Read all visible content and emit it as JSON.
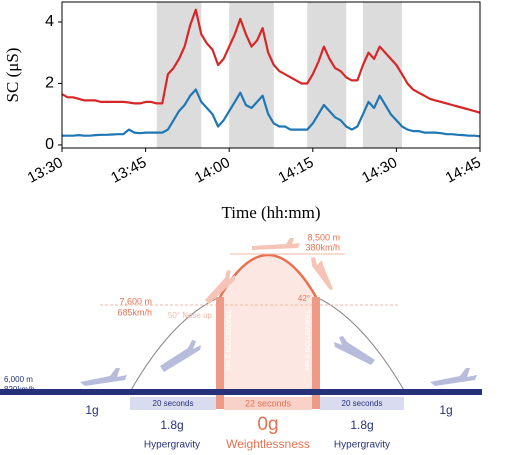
{
  "chart_data": {
    "type": "line",
    "ylabel": "SC (μS)",
    "xlabel": "Time (hh:mm)",
    "x": [
      "13:30",
      "13:31",
      "13:32",
      "13:33",
      "13:34",
      "13:35",
      "13:36",
      "13:37",
      "13:38",
      "13:39",
      "13:40",
      "13:41",
      "13:42",
      "13:43",
      "13:44",
      "13:45",
      "13:46",
      "13:47",
      "13:48",
      "13:49",
      "13:50",
      "13:51",
      "13:52",
      "13:53",
      "13:54",
      "13:55",
      "13:56",
      "13:57",
      "13:58",
      "13:59",
      "14:00",
      "14:01",
      "14:02",
      "14:03",
      "14:04",
      "14:05",
      "14:06",
      "14:07",
      "14:08",
      "14:09",
      "14:10",
      "14:11",
      "14:12",
      "14:13",
      "14:14",
      "14:15",
      "14:16",
      "14:17",
      "14:18",
      "14:19",
      "14:20",
      "14:21",
      "14:22",
      "14:23",
      "14:24",
      "14:25",
      "14:26",
      "14:27",
      "14:28",
      "14:29",
      "14:30",
      "14:31",
      "14:32",
      "14:33",
      "14:34",
      "14:35",
      "14:36",
      "14:37",
      "14:38",
      "14:39",
      "14:40",
      "14:41",
      "14:42",
      "14:43",
      "14:44",
      "14:45"
    ],
    "series": [
      {
        "color": "#d62728",
        "values": [
          1.65,
          1.55,
          1.55,
          1.5,
          1.45,
          1.45,
          1.45,
          1.4,
          1.4,
          1.4,
          1.4,
          1.4,
          1.38,
          1.35,
          1.35,
          1.4,
          1.4,
          1.35,
          1.35,
          2.3,
          2.5,
          2.8,
          3.2,
          3.9,
          4.4,
          3.6,
          3.3,
          3.1,
          2.6,
          2.8,
          3.2,
          3.6,
          4.1,
          3.6,
          3.2,
          3.4,
          3.8,
          3.0,
          2.6,
          2.4,
          2.3,
          2.2,
          2.1,
          2.0,
          2.0,
          2.3,
          2.7,
          3.2,
          2.8,
          2.5,
          2.4,
          2.2,
          2.1,
          2.1,
          2.6,
          3.0,
          2.8,
          3.2,
          3.0,
          2.8,
          2.6,
          2.3,
          2.0,
          1.8,
          1.7,
          1.6,
          1.5,
          1.45,
          1.4,
          1.35,
          1.3,
          1.25,
          1.2,
          1.15,
          1.1,
          1.05
        ]
      },
      {
        "color": "#1f77b4",
        "values": [
          0.3,
          0.3,
          0.3,
          0.32,
          0.3,
          0.3,
          0.32,
          0.33,
          0.33,
          0.34,
          0.35,
          0.35,
          0.5,
          0.4,
          0.38,
          0.4,
          0.4,
          0.4,
          0.4,
          0.5,
          0.8,
          1.1,
          1.3,
          1.6,
          1.8,
          1.4,
          1.2,
          1.0,
          0.6,
          0.8,
          1.1,
          1.4,
          1.7,
          1.3,
          1.2,
          1.4,
          1.6,
          1.0,
          0.7,
          0.6,
          0.6,
          0.5,
          0.5,
          0.5,
          0.5,
          0.7,
          1.0,
          1.3,
          1.1,
          0.9,
          0.8,
          0.6,
          0.5,
          0.6,
          1.0,
          1.4,
          1.2,
          1.6,
          1.3,
          1.0,
          0.8,
          0.6,
          0.5,
          0.45,
          0.45,
          0.4,
          0.4,
          0.4,
          0.38,
          0.35,
          0.35,
          0.33,
          0.32,
          0.3,
          0.3,
          0.28
        ]
      }
    ],
    "shaded": [
      [
        "13:47",
        "13:55"
      ],
      [
        "14:00",
        "14:08"
      ],
      [
        "14:14",
        "14:21"
      ],
      [
        "14:24",
        "14:31"
      ]
    ],
    "shade_color": "#dcdcdc",
    "xlim": [
      "13:30",
      "14:45"
    ],
    "xticks": [
      "13:30",
      "13:45",
      "14:00",
      "14:15",
      "14:30",
      "14:45"
    ],
    "ylim": [
      -0.1,
      4.65
    ],
    "yticks": [
      0,
      2,
      4
    ]
  },
  "diagram": {
    "peak": {
      "altitude": "8,500 m",
      "speed": "380km/h"
    },
    "entry": {
      "altitude": "7,600 m",
      "speed": "685km/h",
      "pitch": "50° Nose up"
    },
    "exit_angle": "42°",
    "cruise": {
      "altitude": "6,000 m",
      "speed": "820km/h"
    },
    "transitions": [
      "TRANSITION 5 sec",
      "TRANSITION 5 sec"
    ],
    "durations": [
      "20 seconds",
      "22 seconds",
      "20 seconds"
    ],
    "phases": [
      {
        "g": "1g"
      },
      {
        "g": "1.8g",
        "name": "Hypergravity"
      },
      {
        "g": "0g",
        "name": "Weightlessness"
      },
      {
        "g": "1.8g",
        "name": "Hypergravity"
      },
      {
        "g": "1g"
      }
    ]
  }
}
